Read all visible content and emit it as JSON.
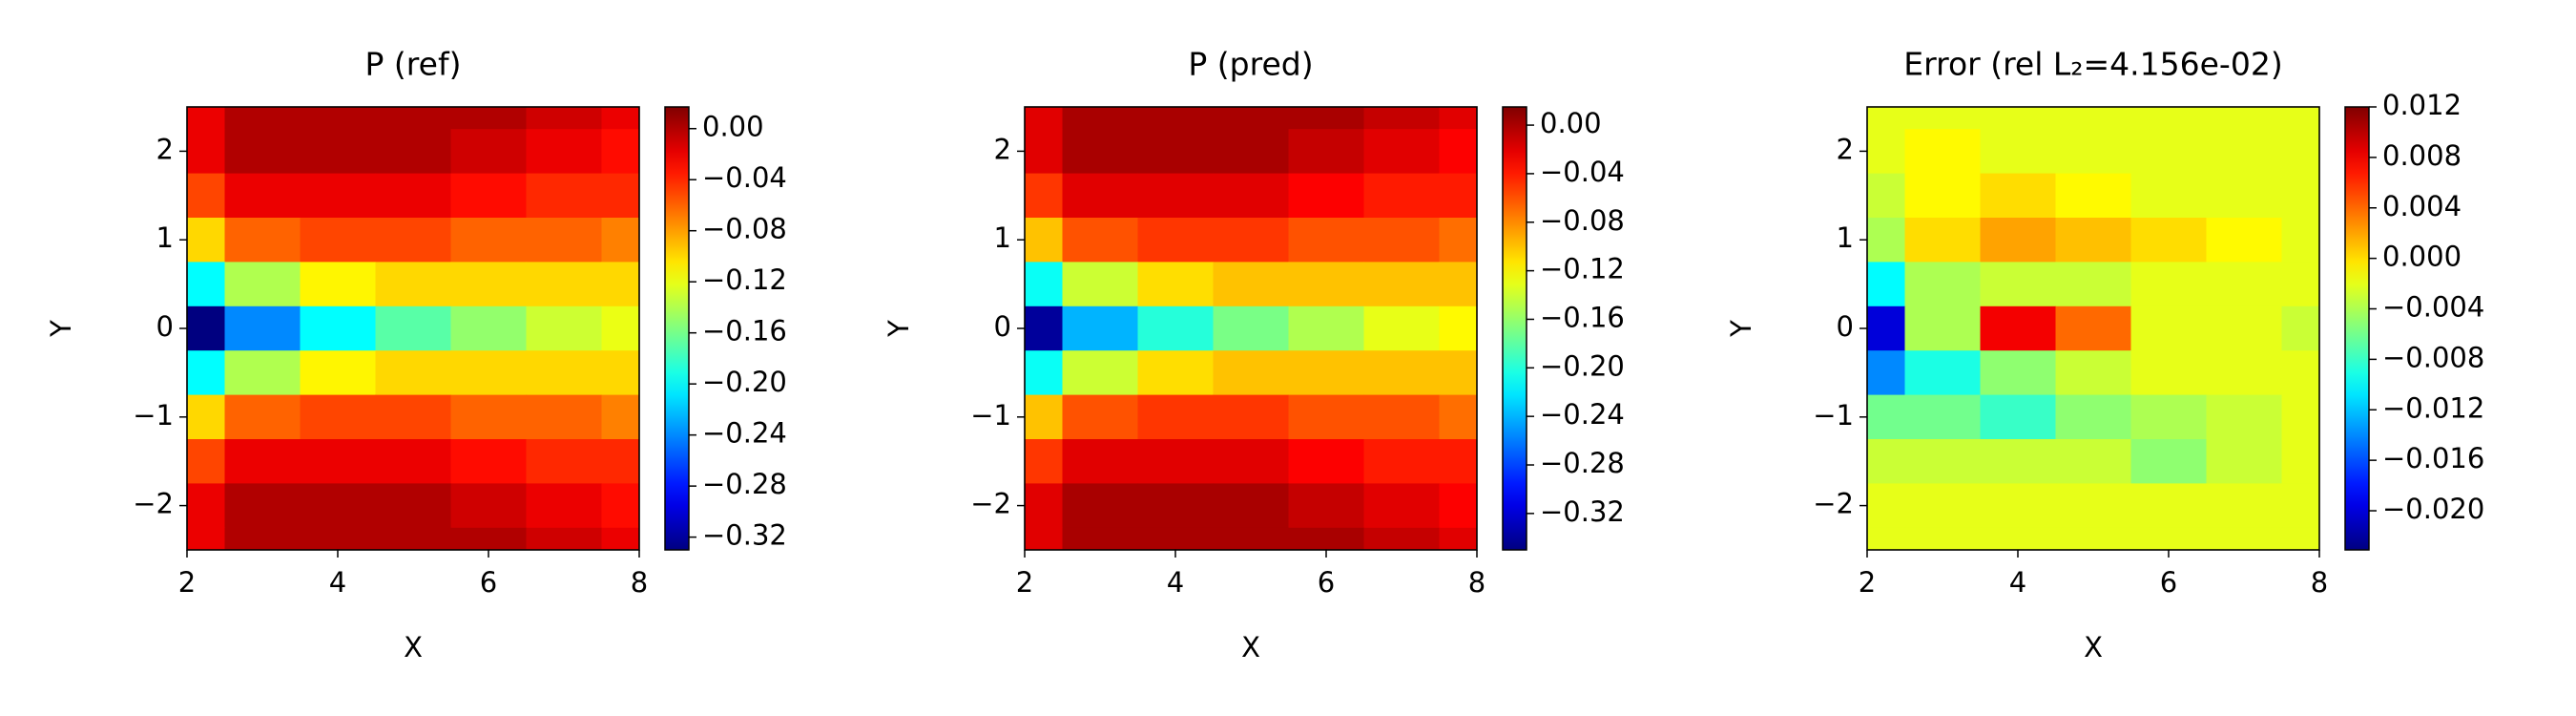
{
  "chart_data": [
    {
      "type": "heatmap",
      "title": "P (ref)",
      "x_label": "X",
      "y_label": "Y",
      "colormap": "jet",
      "x": [
        2,
        3,
        4,
        5,
        6,
        7,
        8
      ],
      "y": [
        2.5,
        2,
        1.5,
        1,
        0.5,
        0,
        -0.5,
        -1,
        -1.5,
        -2,
        -2.5
      ],
      "values": [
        [
          -0.02,
          0.0,
          0.0,
          0.0,
          0.0,
          -0.01,
          -0.02
        ],
        [
          -0.02,
          0.0,
          0.0,
          0.0,
          -0.01,
          -0.02,
          -0.03
        ],
        [
          -0.05,
          -0.02,
          -0.02,
          -0.02,
          -0.03,
          -0.04,
          -0.04
        ],
        [
          -0.1,
          -0.06,
          -0.05,
          -0.05,
          -0.06,
          -0.06,
          -0.07
        ],
        [
          -0.2,
          -0.14,
          -0.11,
          -0.1,
          -0.1,
          -0.1,
          -0.1
        ],
        [
          -0.33,
          -0.24,
          -0.2,
          -0.17,
          -0.15,
          -0.13,
          -0.12
        ],
        [
          -0.2,
          -0.14,
          -0.11,
          -0.1,
          -0.1,
          -0.1,
          -0.1
        ],
        [
          -0.1,
          -0.06,
          -0.05,
          -0.05,
          -0.06,
          -0.06,
          -0.07
        ],
        [
          -0.05,
          -0.02,
          -0.02,
          -0.02,
          -0.03,
          -0.04,
          -0.04
        ],
        [
          -0.02,
          0.0,
          0.0,
          0.0,
          -0.01,
          -0.02,
          -0.03
        ],
        [
          -0.02,
          0.0,
          0.0,
          0.0,
          0.0,
          -0.01,
          -0.02
        ]
      ],
      "xlim": [
        2,
        8
      ],
      "ylim": [
        -2.5,
        2.5
      ],
      "xticks": [
        2,
        4,
        6,
        8
      ],
      "yticks": [
        {
          "value": -2,
          "label": "−2"
        },
        {
          "value": -1,
          "label": "−1"
        },
        0,
        1,
        2
      ],
      "colorbar_lim": [
        -0.33,
        0.017
      ],
      "colorbar_ticks": [
        {
          "value": 0,
          "label": "0.00"
        },
        {
          "value": -0.04,
          "label": "−0.04"
        },
        {
          "value": -0.08,
          "label": "−0.08"
        },
        {
          "value": -0.12,
          "label": "−0.12"
        },
        {
          "value": -0.16,
          "label": "−0.16"
        },
        {
          "value": -0.2,
          "label": "−0.20"
        },
        {
          "value": -0.24,
          "label": "−0.24"
        },
        {
          "value": -0.28,
          "label": "−0.28"
        },
        {
          "value": -0.32,
          "label": "−0.32"
        }
      ]
    },
    {
      "type": "heatmap",
      "title": "P (pred)",
      "x_label": "X",
      "y_label": "Y",
      "colormap": "jet",
      "x": [
        2,
        3,
        4,
        5,
        6,
        7,
        8
      ],
      "y": [
        2.5,
        2,
        1.5,
        1,
        0.5,
        0,
        -0.5,
        -1,
        -1.5,
        -2,
        -2.5
      ],
      "values": [
        [
          -0.02,
          0.0,
          0.0,
          0.0,
          0.0,
          -0.01,
          -0.02
        ],
        [
          -0.02,
          0.0,
          0.0,
          0.0,
          -0.01,
          -0.02,
          -0.03
        ],
        [
          -0.05,
          -0.02,
          -0.02,
          -0.02,
          -0.03,
          -0.04,
          -0.04
        ],
        [
          -0.1,
          -0.06,
          -0.05,
          -0.05,
          -0.06,
          -0.06,
          -0.07
        ],
        [
          -0.21,
          -0.14,
          -0.11,
          -0.1,
          -0.1,
          -0.1,
          -0.1
        ],
        [
          -0.34,
          -0.24,
          -0.2,
          -0.17,
          -0.15,
          -0.13,
          -0.12
        ],
        [
          -0.21,
          -0.14,
          -0.11,
          -0.1,
          -0.1,
          -0.1,
          -0.1
        ],
        [
          -0.1,
          -0.06,
          -0.05,
          -0.05,
          -0.06,
          -0.06,
          -0.07
        ],
        [
          -0.05,
          -0.02,
          -0.02,
          -0.02,
          -0.03,
          -0.04,
          -0.04
        ],
        [
          -0.02,
          0.0,
          0.0,
          0.0,
          -0.01,
          -0.02,
          -0.03
        ],
        [
          -0.02,
          0.0,
          0.0,
          0.0,
          0.0,
          -0.01,
          -0.02
        ]
      ],
      "xlim": [
        2,
        8
      ],
      "ylim": [
        -2.5,
        2.5
      ],
      "xticks": [
        2,
        4,
        6,
        8
      ],
      "yticks": [
        {
          "value": -2,
          "label": "−2"
        },
        {
          "value": -1,
          "label": "−1"
        },
        0,
        1,
        2
      ],
      "colorbar_lim": [
        -0.35,
        0.015
      ],
      "colorbar_ticks": [
        {
          "value": 0,
          "label": "0.00"
        },
        {
          "value": -0.04,
          "label": "−0.04"
        },
        {
          "value": -0.08,
          "label": "−0.08"
        },
        {
          "value": -0.12,
          "label": "−0.12"
        },
        {
          "value": -0.16,
          "label": "−0.16"
        },
        {
          "value": -0.2,
          "label": "−0.20"
        },
        {
          "value": -0.24,
          "label": "−0.24"
        },
        {
          "value": -0.28,
          "label": "−0.28"
        },
        {
          "value": -0.32,
          "label": "−0.32"
        }
      ]
    },
    {
      "type": "heatmap",
      "title": "Error (rel L₂=4.156e-02)",
      "x_label": "X",
      "y_label": "Y",
      "colormap": "jet",
      "x": [
        2,
        3,
        4,
        5,
        6,
        7,
        8
      ],
      "y": [
        2.5,
        2,
        1.5,
        1,
        0.5,
        0,
        -0.5,
        -1,
        -1.5,
        -2,
        -2.5
      ],
      "values": [
        [
          -0.002,
          -0.002,
          -0.002,
          -0.002,
          -0.002,
          -0.002,
          -0.002
        ],
        [
          -0.002,
          -0.001,
          -0.002,
          -0.002,
          -0.002,
          -0.002,
          -0.002
        ],
        [
          -0.003,
          -0.001,
          0.0,
          -0.001,
          -0.002,
          -0.002,
          -0.002
        ],
        [
          -0.004,
          0.0,
          0.002,
          0.001,
          0.0,
          -0.001,
          -0.002
        ],
        [
          -0.01,
          -0.004,
          -0.003,
          -0.003,
          -0.002,
          -0.002,
          -0.002
        ],
        [
          -0.02,
          -0.004,
          0.008,
          0.004,
          -0.002,
          -0.002,
          -0.003
        ],
        [
          -0.014,
          -0.009,
          -0.005,
          -0.003,
          -0.002,
          -0.002,
          -0.002
        ],
        [
          -0.006,
          -0.006,
          -0.008,
          -0.005,
          -0.004,
          -0.003,
          -0.002
        ],
        [
          -0.003,
          -0.003,
          -0.003,
          -0.003,
          -0.005,
          -0.003,
          -0.002
        ],
        [
          -0.002,
          -0.002,
          -0.002,
          -0.002,
          -0.002,
          -0.002,
          -0.002
        ],
        [
          -0.002,
          -0.002,
          -0.002,
          -0.002,
          -0.002,
          -0.002,
          -0.002
        ]
      ],
      "xlim": [
        2,
        8
      ],
      "ylim": [
        -2.5,
        2.5
      ],
      "xticks": [
        2,
        4,
        6,
        8
      ],
      "yticks": [
        {
          "value": -2,
          "label": "−2"
        },
        {
          "value": -1,
          "label": "−1"
        },
        0,
        1,
        2
      ],
      "colorbar_lim": [
        -0.0231,
        0.012
      ],
      "colorbar_ticks": [
        {
          "value": 0.012,
          "label": "0.012"
        },
        {
          "value": 0.008,
          "label": "0.008"
        },
        {
          "value": 0.004,
          "label": "0.004"
        },
        {
          "value": 0,
          "label": "0.000"
        },
        {
          "value": -0.004,
          "label": "−0.004"
        },
        {
          "value": -0.008,
          "label": "−0.008"
        },
        {
          "value": -0.012,
          "label": "−0.012"
        },
        {
          "value": -0.016,
          "label": "−0.016"
        },
        {
          "value": -0.02,
          "label": "−0.020"
        }
      ]
    }
  ]
}
